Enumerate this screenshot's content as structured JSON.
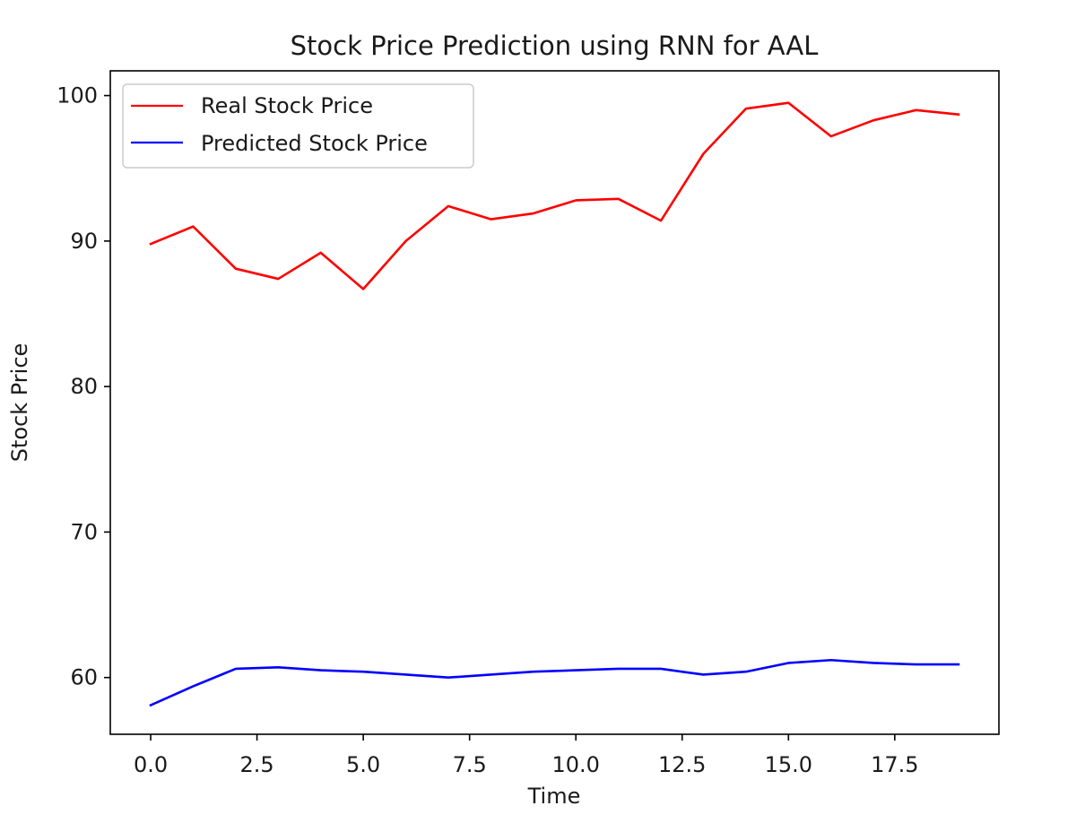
{
  "chart_data": {
    "type": "line",
    "title": "Stock Price Prediction using RNN for AAL",
    "xlabel": "Time",
    "ylabel": "Stock Price",
    "x": [
      0,
      1,
      2,
      3,
      4,
      5,
      6,
      7,
      8,
      9,
      10,
      11,
      12,
      13,
      14,
      15,
      16,
      17,
      18,
      19
    ],
    "xlim": [
      -0.95,
      19.95
    ],
    "ylim": [
      56.1,
      101.7
    ],
    "xticks": [
      0.0,
      2.5,
      5.0,
      7.5,
      10.0,
      12.5,
      15.0,
      17.5
    ],
    "xtick_labels": [
      "0.0",
      "2.5",
      "5.0",
      "7.5",
      "10.0",
      "12.5",
      "15.0",
      "17.5"
    ],
    "yticks": [
      60,
      70,
      80,
      90,
      100
    ],
    "ytick_labels": [
      "60",
      "70",
      "80",
      "90",
      "100"
    ],
    "grid": false,
    "legend_position": "upper-left",
    "series": [
      {
        "name": "Real Stock Price",
        "color": "#ff0000",
        "values": [
          89.8,
          91.0,
          88.1,
          87.4,
          89.2,
          86.7,
          90.0,
          92.4,
          91.5,
          91.9,
          92.8,
          92.9,
          91.4,
          96.0,
          99.1,
          99.5,
          97.2,
          98.3,
          99.0,
          98.7
        ]
      },
      {
        "name": "Predicted Stock Price",
        "color": "#0000ff",
        "values": [
          58.1,
          59.4,
          60.6,
          60.7,
          60.5,
          60.4,
          60.2,
          60.0,
          60.2,
          60.4,
          60.5,
          60.6,
          60.6,
          60.2,
          60.4,
          61.0,
          61.2,
          61.0,
          60.9,
          60.9
        ]
      }
    ]
  }
}
